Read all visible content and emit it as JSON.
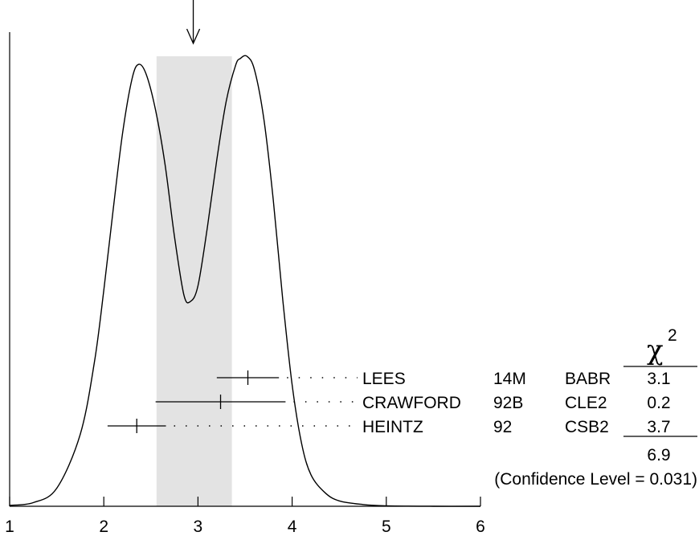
{
  "chart_data": {
    "type": "ideogram",
    "title": "",
    "xlabel": "",
    "ylabel": "",
    "xlim": [
      1,
      6
    ],
    "x_ticks": [
      "1",
      "2",
      "3",
      "4",
      "5",
      "6"
    ],
    "weighted_average": 2.95,
    "scaled_error_band": [
      2.56,
      3.36
    ],
    "curve": {
      "x": [
        1.0,
        1.25,
        1.5,
        1.75,
        1.9,
        2.0,
        2.1,
        2.2,
        2.3,
        2.37,
        2.45,
        2.55,
        2.65,
        2.75,
        2.85,
        2.92,
        3.0,
        3.1,
        3.2,
        3.3,
        3.4,
        3.45,
        3.52,
        3.6,
        3.7,
        3.8,
        3.9,
        4.0,
        4.1,
        4.2,
        4.35,
        4.5,
        4.75,
        5.0,
        5.5,
        6.0
      ],
      "y": [
        0.002,
        0.008,
        0.04,
        0.16,
        0.32,
        0.48,
        0.66,
        0.83,
        0.95,
        0.982,
        0.96,
        0.88,
        0.76,
        0.6,
        0.47,
        0.455,
        0.49,
        0.62,
        0.77,
        0.9,
        0.98,
        0.995,
        1.0,
        0.97,
        0.86,
        0.68,
        0.46,
        0.27,
        0.14,
        0.07,
        0.03,
        0.012,
        0.004,
        0.001,
        0.0,
        0.0
      ]
    },
    "measurements": [
      {
        "name": "LEES",
        "year": "14M",
        "experiment": "BABR",
        "value": 3.53,
        "error": 0.33,
        "chi2": "3.1"
      },
      {
        "name": "CRAWFORD",
        "year": "92B",
        "experiment": "CLE2",
        "value": 3.24,
        "error": 0.69,
        "chi2": "0.2"
      },
      {
        "name": "HEINTZ",
        "year": "92",
        "experiment": "CSB2",
        "value": 2.35,
        "error": 0.31,
        "chi2": "3.7"
      }
    ],
    "chi2_header": "χ",
    "chi2_exponent": "2",
    "chi2_total": "6.9",
    "confidence_level": "(Confidence Level = 0.031)"
  }
}
